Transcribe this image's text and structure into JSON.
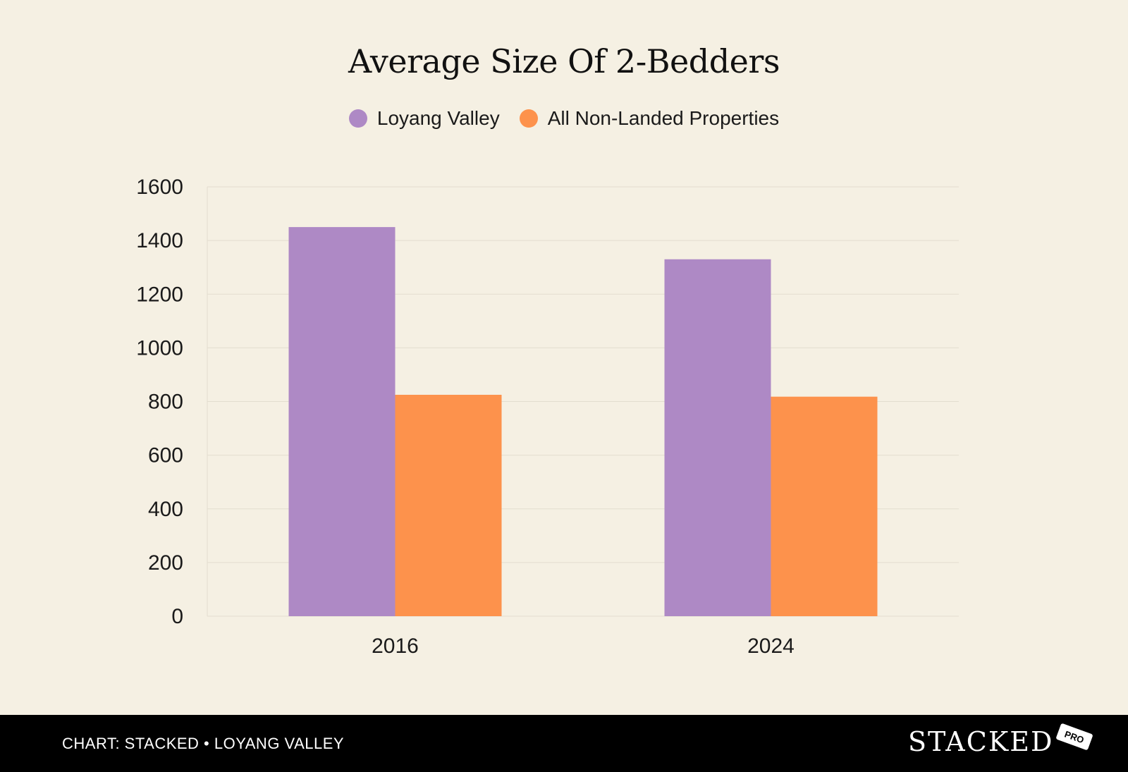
{
  "chart_data": {
    "type": "bar",
    "title": "Average Size Of 2-Bedders",
    "xlabel": "",
    "ylabel": "",
    "categories": [
      "2016",
      "2024"
    ],
    "series": [
      {
        "name": "Loyang Valley",
        "color": "#ae89c5",
        "values": [
          1450,
          1330
        ]
      },
      {
        "name": "All Non-Landed Properties",
        "color": "#fd924c",
        "values": [
          825,
          818
        ]
      }
    ],
    "ylim": [
      0,
      1600
    ],
    "yticks": [
      0,
      200,
      400,
      600,
      800,
      1000,
      1200,
      1400,
      1600
    ],
    "grid": true,
    "legend": "top-center"
  },
  "footer": {
    "credit": "CHART: STACKED • LOYANG VALLEY",
    "brand": "STACKED",
    "badge": "PRO"
  }
}
